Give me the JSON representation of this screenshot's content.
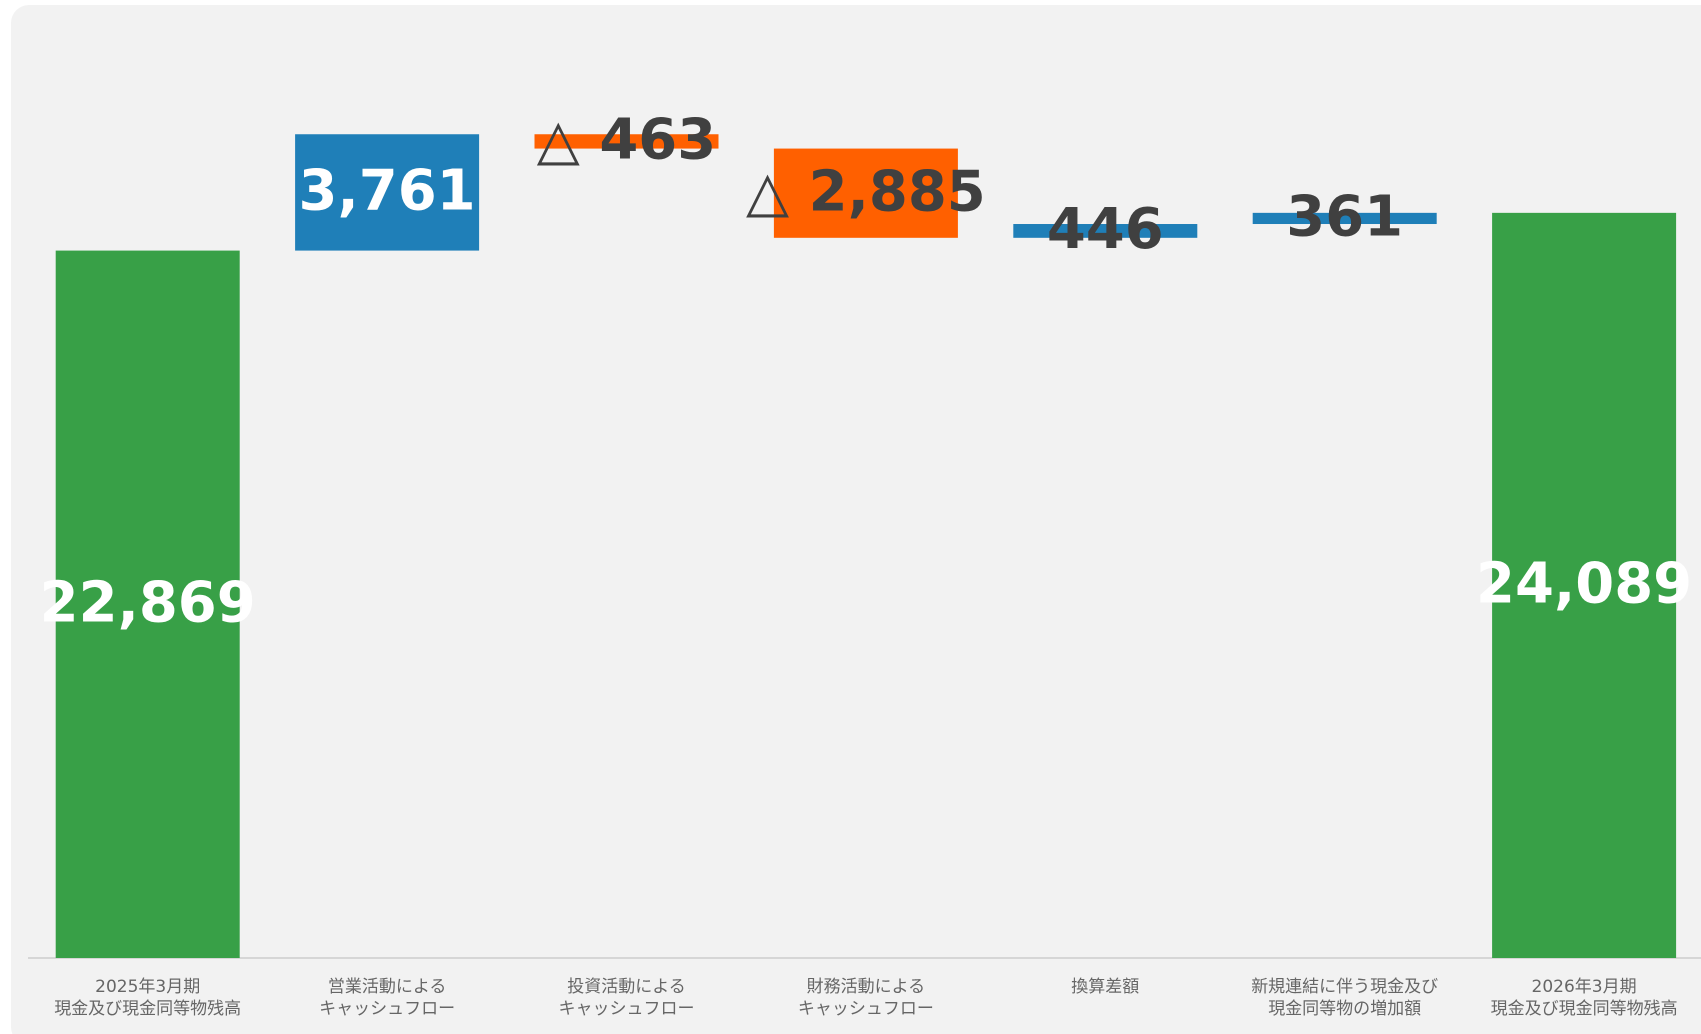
{
  "chart_data": {
    "type": "waterfall",
    "categories": [
      "2025年3月期\n現金及び現金同等物残高",
      "営業活動による\nキャッシュフロー",
      "投資活動による\nキャッシュフロー",
      "財務活動による\nキャッシュフロー",
      "換算差額",
      "新規連結に伴う現金及び\n現金同等物の増加額",
      "2026年3月期\n現金及び現金同等物残高"
    ],
    "values": [
      22869,
      3761,
      -463,
      -2885,
      446,
      361,
      24089
    ],
    "value_labels": [
      "22,869",
      "3,761",
      "△ 463",
      "△ 2,885",
      "446",
      "361",
      "24,089"
    ],
    "measure": [
      "total",
      "relative",
      "relative",
      "relative",
      "relative",
      "relative",
      "total"
    ],
    "colors": {
      "total": "#38a047",
      "increase": "#1f7fb8",
      "decrease": "#ff6000"
    },
    "value_label_colors": [
      "#ffffff",
      "#ffffff",
      "#404040",
      "#404040",
      "#404040",
      "#404040",
      "#ffffff"
    ],
    "ylim": [
      0,
      30000
    ]
  }
}
